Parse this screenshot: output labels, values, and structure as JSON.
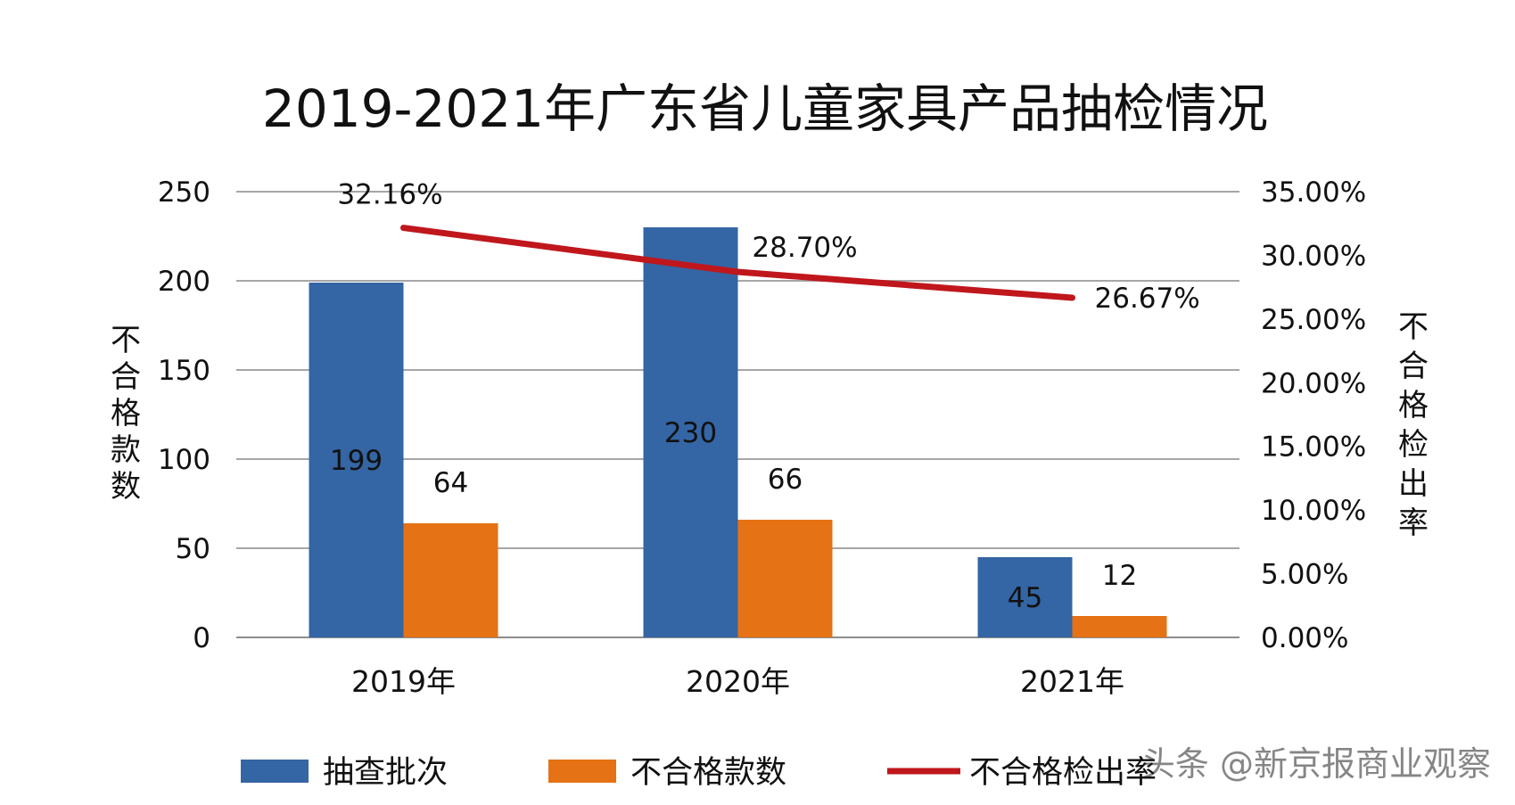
{
  "chart_data": {
    "type": "bar",
    "title": "2019-2021年广东省儿童家具产品抽检情况",
    "categories": [
      "2019年",
      "2020年",
      "2021年"
    ],
    "series": [
      {
        "name": "抽查批次",
        "type": "bar",
        "axis": "left",
        "values": [
          199,
          230,
          45
        ],
        "labels": [
          "199",
          "230",
          "45"
        ],
        "color": "#3465a4"
      },
      {
        "name": "不合格款数",
        "type": "bar",
        "axis": "left",
        "values": [
          64,
          66,
          12
        ],
        "labels": [
          "64",
          "66",
          "12"
        ],
        "color": "#e57214"
      },
      {
        "name": "不合格检出率",
        "type": "line",
        "axis": "right",
        "values": [
          32.16,
          28.7,
          26.67
        ],
        "labels": [
          "32.16%",
          "28.70%",
          "26.67%"
        ],
        "color": "#c0171c"
      }
    ],
    "ylabel": "不合格款数",
    "ylim": [
      0,
      250
    ],
    "y_ticks": [
      "0",
      "50",
      "100",
      "150",
      "200",
      "250"
    ],
    "y2label": "不合格检出率",
    "y2lim": [
      0,
      35
    ],
    "y2_ticks": [
      "0.00%",
      "5.00%",
      "10.00%",
      "15.00%",
      "20.00%",
      "25.00%",
      "30.00%",
      "35.00%"
    ],
    "grid": true,
    "legend_position": "bottom"
  },
  "watermark": "头条 @新京报商业观察"
}
